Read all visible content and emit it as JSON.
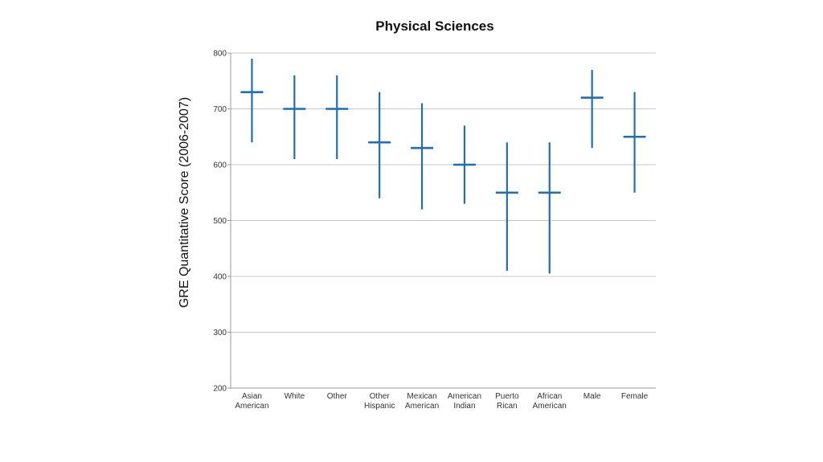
{
  "chart_data": {
    "type": "high-low-mean",
    "title": "Physical Sciences",
    "xlabel": "",
    "ylabel": "GRE Quantitative Score (2006-2007)",
    "ylim": [
      200,
      800
    ],
    "yticks": [
      200,
      300,
      400,
      500,
      600,
      700,
      800
    ],
    "grid": true,
    "color": "#1f6fb2",
    "categories": [
      [
        "Asian",
        "American"
      ],
      [
        "White"
      ],
      [
        "Other"
      ],
      [
        "Other",
        "Hispanic"
      ],
      [
        "Mexican",
        "American"
      ],
      [
        "American",
        "Indian"
      ],
      [
        "Puerto",
        "Rican"
      ],
      [
        "African",
        "American"
      ],
      [
        "Male"
      ],
      [
        "Female"
      ]
    ],
    "series": [
      {
        "high": [
          790,
          760,
          760,
          730,
          710,
          670,
          640,
          640,
          770,
          730
        ],
        "mean": [
          730,
          700,
          700,
          640,
          630,
          600,
          550,
          550,
          720,
          650
        ],
        "low": [
          640,
          610,
          610,
          540,
          520,
          530,
          410,
          405,
          630,
          550
        ]
      }
    ]
  }
}
